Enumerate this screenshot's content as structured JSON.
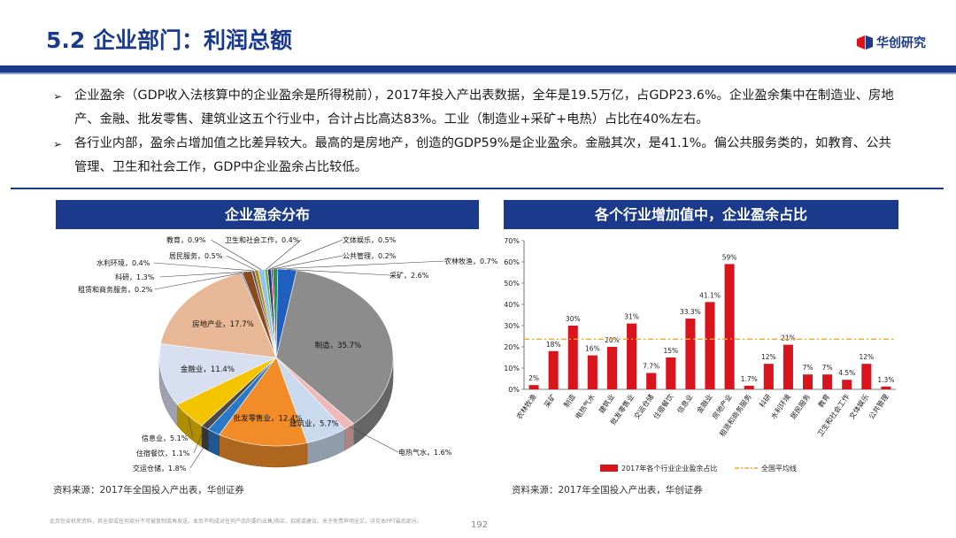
{
  "header": {
    "title": "5.2 企业部门：利润总额",
    "logo_text": "华创研究"
  },
  "bullets": [
    "企业盈余（GDP收入法核算中的企业盈余是所得税前），2017年投入产出表数据，全年是19.5万亿，占GDP23.6%。企业盈余集中在制造业、房地产、金融、批发零售、建筑业这五个行业中，合计占比高达83%。工业（制造业+采矿+电热）占比在40%左右。",
    "各行业内部，盈余占增加值之比差异较大。最高的是房地产，创造的GDP59%是企业盈余。金融其次，是41.1%。偏公共服务类的，如教育、公共管理、卫生和社会工作，GDP中企业盈余占比较低。"
  ],
  "left_panel": {
    "title": "企业盈余分布",
    "source": "资料来源：2017年全国投入产出表，华创证券"
  },
  "right_panel": {
    "title": "各个行业增加值中，企业盈余占比",
    "source": "资料来源：2017年全国投入产出表，华创证券"
  },
  "footer": {
    "disclaimer": "此页包含机密资料，其全部或任何部分不可被复制或再发送。本页不构成对任何产品的要约出售/购买、招揽或建议。关于免责声明全文，详见本PPT最后部分。",
    "page": "192"
  },
  "colors": {
    "brand": "#1b3a8c",
    "bar": "#d9141d",
    "avg_line": "#f2a92b"
  },
  "chart_data": [
    {
      "type": "pie",
      "title": "企业盈余分布",
      "slices": [
        {
          "name": "农林牧渔",
          "value": 0.7,
          "label": "农林牧渔，0.7%",
          "color": "#2e8b57"
        },
        {
          "name": "采矿",
          "value": 2.6,
          "label": "采矿，2.6%",
          "color": "#1f5fbf"
        },
        {
          "name": "制造",
          "value": 35.7,
          "label": "制造，35.7%",
          "color": "#8c8c8c"
        },
        {
          "name": "电热气水",
          "value": 1.6,
          "label": "电热气水，1.6%",
          "color": "#f0b8b8"
        },
        {
          "name": "建筑业",
          "value": 5.7,
          "label": "建筑业，5.7%",
          "color": "#c9d9ee"
        },
        {
          "name": "批发零售业",
          "value": 12.4,
          "label": "批发零售业，12.4%",
          "color": "#f28c28"
        },
        {
          "name": "交运仓储",
          "value": 1.8,
          "label": "交运仓储，1.8%",
          "color": "#2979c9"
        },
        {
          "name": "住宿餐饮",
          "value": 1.1,
          "label": "住宿餐饮，1.1%",
          "color": "#4a4a4a"
        },
        {
          "name": "信息业",
          "value": 5.1,
          "label": "信息业，5.1%",
          "color": "#f5c400"
        },
        {
          "name": "金融业",
          "value": 11.4,
          "label": "金融业，11.4%",
          "color": "#d8dff0"
        },
        {
          "name": "房地产业",
          "value": 17.7,
          "label": "房地产业，17.7%",
          "color": "#e8b896"
        },
        {
          "name": "租赁和商务服务",
          "value": 0.2,
          "label": "租赁和商务服务，0.2%",
          "color": "#2f5597"
        },
        {
          "name": "科研",
          "value": 1.3,
          "label": "科研，1.3%",
          "color": "#8a4a1c"
        },
        {
          "name": "水利环境",
          "value": 0.4,
          "label": "水利环境，0.4%",
          "color": "#5a5a5a"
        },
        {
          "name": "居民服务",
          "value": 0.5,
          "label": "居民服务，0.5%",
          "color": "#b8860b"
        },
        {
          "name": "教育",
          "value": 0.9,
          "label": "教育，0.9%",
          "color": "#93c5e8"
        },
        {
          "name": "卫生和社会工作",
          "value": 0.4,
          "label": "卫生和社会工作，0.4%",
          "color": "#70ad47"
        },
        {
          "name": "文体娱乐",
          "value": 0.5,
          "label": "文体娱乐，0.5%",
          "color": "#1b3a8c"
        },
        {
          "name": "公共管理",
          "value": 0.2,
          "label": "公共管理，0.2%",
          "color": "#c00000"
        }
      ]
    },
    {
      "type": "bar",
      "title": "各个行业增加值中，企业盈余占比",
      "categories": [
        "农林牧渔",
        "采矿",
        "制造",
        "电热气水",
        "建筑业",
        "批发零售业",
        "交运仓储",
        "住宿餐饮",
        "信息业",
        "金融业",
        "房地产业",
        "租赁和商务服务",
        "科研",
        "水利环境",
        "居民服务",
        "教育",
        "卫生和社会工作",
        "文体娱乐",
        "公共管理"
      ],
      "values": [
        2,
        18,
        30,
        16,
        20,
        31,
        7.7,
        15,
        33.3,
        41.1,
        59,
        1.7,
        12,
        21,
        7,
        7,
        4.5,
        12,
        1.3
      ],
      "value_labels": [
        "2%",
        "18%",
        "30%",
        "16%",
        "20%",
        "31%",
        "7.7%",
        "15%",
        "33.3%",
        "41.1%",
        "59%",
        "1.7%",
        "12%",
        "21%",
        "7%",
        "7%",
        "4.5%",
        "12%",
        "1.3%"
      ],
      "average": 23.6,
      "ylim": [
        0,
        70
      ],
      "yticks": [
        "0%",
        "10%",
        "20%",
        "30%",
        "40%",
        "50%",
        "60%",
        "70%"
      ],
      "legend": [
        "2017年各个行业企业盈余占比",
        "全国平均线"
      ],
      "legend_position": "bottom"
    }
  ]
}
